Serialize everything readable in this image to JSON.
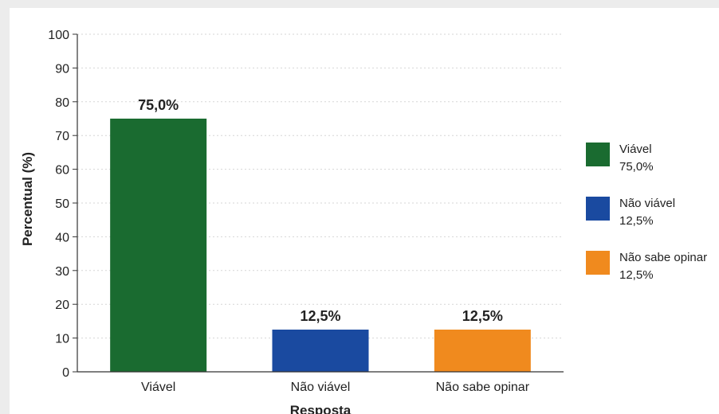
{
  "chart_data": {
    "type": "bar",
    "categories": [
      "Viável",
      "Não viável",
      "Não sabe opinar"
    ],
    "values": [
      75.0,
      12.5,
      12.5
    ],
    "data_labels": [
      "75,0%",
      "12,5%",
      "12,5%"
    ],
    "colors": [
      "#1a6b30",
      "#1a4aa0",
      "#f08a1e"
    ],
    "xlabel": "Resposta",
    "ylabel": "Percentual (%)",
    "ylim": [
      0,
      100
    ],
    "yticks": [
      0,
      10,
      20,
      30,
      40,
      50,
      60,
      70,
      80,
      90,
      100
    ],
    "grid": "horizontal dotted",
    "legend_position": "right",
    "legend": [
      {
        "name": "Viável",
        "value": "75,0%"
      },
      {
        "name": "Não viável",
        "value": "12,5%"
      },
      {
        "name": "Não sabe opinar",
        "value": "12,5%"
      }
    ]
  }
}
